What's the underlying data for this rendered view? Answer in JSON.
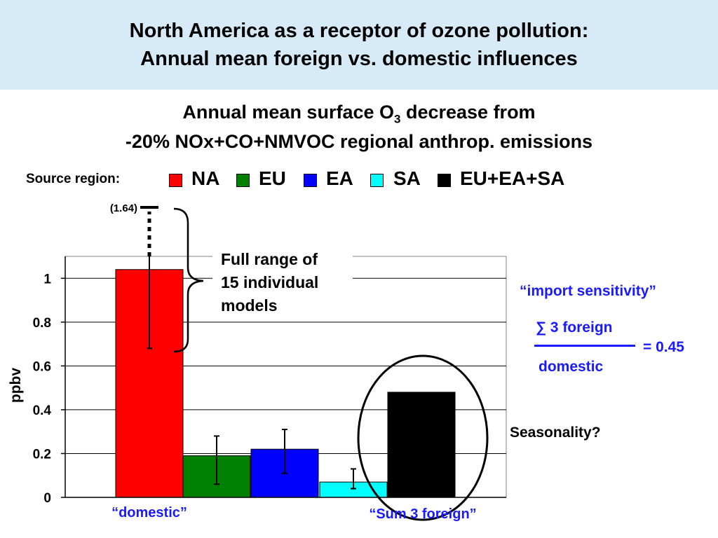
{
  "header": {
    "title_line1": "North America as a receptor of ozone pollution:",
    "title_line2": "Annual mean foreign vs. domestic influences"
  },
  "subtitle": {
    "line1_prefix": "Annual mean surface O",
    "line1_subscript": "3",
    "line1_suffix": " decrease from",
    "line2": "-20% NOx+CO+NMVOC regional anthrop. emissions"
  },
  "legend": {
    "label": "Source region:",
    "items": [
      {
        "name": "NA",
        "color": "#ff0000"
      },
      {
        "name": "EU",
        "color": "#008000"
      },
      {
        "name": "EA",
        "color": "#0000ff"
      },
      {
        "name": "SA",
        "color": "#00ffff"
      },
      {
        "name": "EU+EA+SA",
        "color": "#000000"
      }
    ]
  },
  "chart_data": {
    "type": "bar",
    "categories": [
      "NA",
      "EU",
      "EA",
      "SA",
      "EU+EA+SA"
    ],
    "values": [
      1.04,
      0.19,
      0.22,
      0.07,
      0.48
    ],
    "error_low": [
      0.68,
      0.06,
      0.11,
      0.04,
      null
    ],
    "error_high": [
      1.64,
      0.28,
      0.31,
      0.13,
      null
    ],
    "colors": [
      "#ff0000",
      "#008000",
      "#0000ff",
      "#00ffff",
      "#000000"
    ],
    "ylabel": "ppbv",
    "ylim": [
      0,
      1.1
    ],
    "yticks": [
      "0",
      "0.2",
      "0.4",
      "0.6",
      "0.8",
      "1"
    ],
    "ytick_values": [
      0,
      0.2,
      0.4,
      0.6,
      0.8,
      1
    ],
    "grid": true,
    "offscale_label": "(1.64)",
    "range_annotation": "Full range of 15 individual models",
    "range_annotation_lines": [
      "Full range of",
      "15 individual",
      "models"
    ],
    "group_labels": {
      "domestic": "“domestic”",
      "foreign": "“Sum 3 foreign”"
    }
  },
  "notes": {
    "import_title": "“import sensitivity”",
    "numerator": "∑ 3 foreign",
    "denominator": "domestic",
    "result": "= 0.45",
    "seasonality": "Seasonality?"
  }
}
